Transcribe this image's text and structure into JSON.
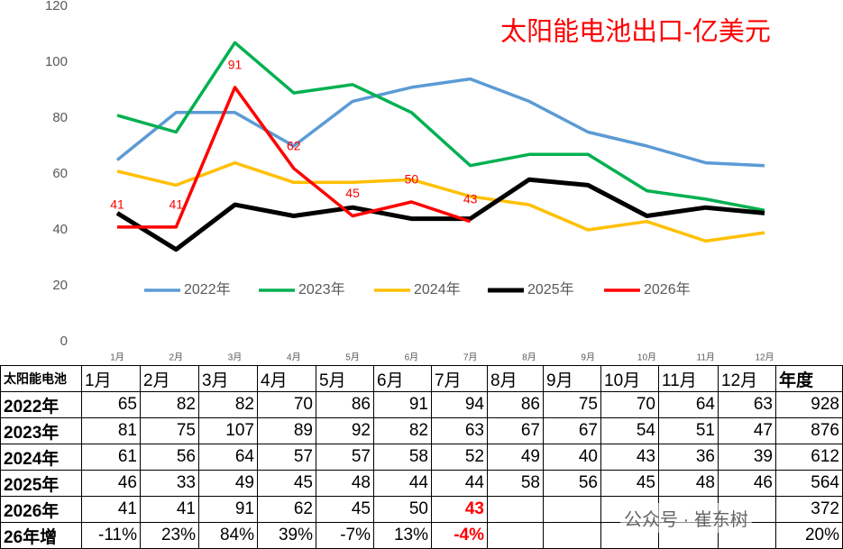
{
  "chart_data": {
    "type": "line",
    "title": "太阳能电池出口-亿美元",
    "categories": [
      "1月",
      "2月",
      "3月",
      "4月",
      "5月",
      "6月",
      "7月",
      "8月",
      "9月",
      "10月",
      "11月",
      "12月"
    ],
    "series": [
      {
        "name": "2022年",
        "color": "#5b9bd5",
        "values": [
          65,
          82,
          82,
          70,
          86,
          91,
          94,
          86,
          75,
          70,
          64,
          63
        ]
      },
      {
        "name": "2023年",
        "color": "#00b050",
        "values": [
          81,
          75,
          107,
          89,
          92,
          82,
          63,
          67,
          67,
          54,
          51,
          47
        ]
      },
      {
        "name": "2024年",
        "color": "#ffc000",
        "values": [
          61,
          56,
          64,
          57,
          57,
          58,
          52,
          49,
          40,
          43,
          36,
          39
        ]
      },
      {
        "name": "2025年",
        "color": "#000000",
        "values": [
          46,
          33,
          49,
          45,
          48,
          44,
          44,
          58,
          56,
          45,
          48,
          46
        ]
      },
      {
        "name": "2026年",
        "color": "#ff0000",
        "values": [
          41,
          41,
          91,
          62,
          45,
          50,
          43,
          null,
          null,
          null,
          null,
          null
        ],
        "data_labels": true
      }
    ],
    "ylim": [
      0,
      120
    ],
    "yticks": [
      0,
      20,
      40,
      60,
      80,
      100,
      120
    ],
    "grid": false,
    "legend": "bottom"
  },
  "table": {
    "header": [
      "太阳能电池",
      "1月",
      "2月",
      "3月",
      "4月",
      "5月",
      "6月",
      "7月",
      "8月",
      "9月",
      "10月",
      "11月",
      "12月",
      "年度"
    ],
    "rows": [
      {
        "cells": [
          "2022年",
          "65",
          "82",
          "82",
          "70",
          "86",
          "91",
          "94",
          "86",
          "75",
          "70",
          "64",
          "63"
        ],
        "total": "928"
      },
      {
        "cells": [
          "2023年",
          "81",
          "75",
          "107",
          "89",
          "92",
          "82",
          "63",
          "67",
          "67",
          "54",
          "51",
          "47"
        ],
        "total": "876"
      },
      {
        "cells": [
          "2024年",
          "61",
          "56",
          "64",
          "57",
          "57",
          "58",
          "52",
          "49",
          "40",
          "43",
          "36",
          "39"
        ],
        "total": "612"
      },
      {
        "cells": [
          "2025年",
          "46",
          "33",
          "49",
          "45",
          "48",
          "44",
          "44",
          "58",
          "56",
          "45",
          "48",
          "46"
        ],
        "total": "564"
      },
      {
        "cells": [
          "2026年",
          "41",
          "41",
          "91",
          "62",
          "45",
          "50",
          "43"
        ],
        "total": "372"
      },
      {
        "cells": [
          "26年增",
          "-11%",
          "23%",
          "84%",
          "39%",
          "-7%",
          "13%",
          "-4%"
        ],
        "total": "20%"
      }
    ]
  },
  "watermark": "公众号 · 崔东树"
}
